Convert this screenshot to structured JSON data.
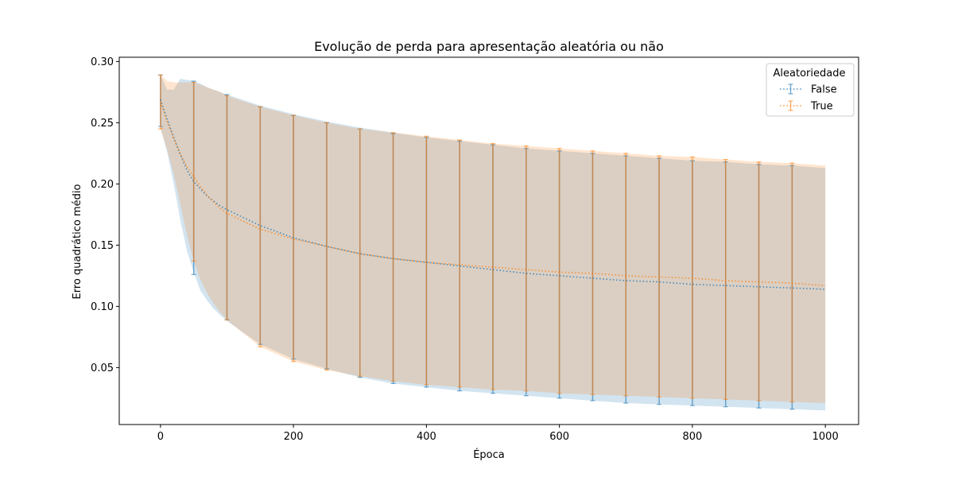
{
  "chart_data": {
    "type": "line",
    "title": "Evolução de perda para apresentação aleatória ou não",
    "xlabel": "Época",
    "ylabel": "Erro quadrático médio",
    "xlim": [
      -62,
      1050
    ],
    "ylim": [
      0.0035,
      0.3035
    ],
    "xticks": [
      0,
      200,
      400,
      600,
      800,
      1000
    ],
    "yticks": [
      0.05,
      0.1,
      0.15,
      0.2,
      0.25,
      0.3
    ],
    "ytick_labels": [
      "0.05",
      "0.10",
      "0.15",
      "0.20",
      "0.25",
      "0.30"
    ],
    "grid": false,
    "legend": {
      "title": "Aleatoriedade",
      "position": "top-right"
    },
    "series": [
      {
        "name": "False",
        "color": "#1f77b4",
        "x": [
          0,
          10,
          20,
          30,
          40,
          50,
          60,
          70,
          80,
          90,
          100,
          150,
          200,
          250,
          300,
          350,
          400,
          450,
          500,
          550,
          600,
          650,
          700,
          750,
          800,
          850,
          900,
          950,
          1000
        ],
        "mean": [
          0.269,
          0.253,
          0.238,
          0.224,
          0.211,
          0.202,
          0.196,
          0.19,
          0.186,
          0.182,
          0.179,
          0.166,
          0.156,
          0.149,
          0.143,
          0.139,
          0.136,
          0.133,
          0.13,
          0.127,
          0.125,
          0.123,
          0.121,
          0.12,
          0.118,
          0.117,
          0.116,
          0.115,
          0.114
        ],
        "upper": [
          0.289,
          0.277,
          0.277,
          0.286,
          0.285,
          0.284,
          0.282,
          0.279,
          0.277,
          0.275,
          0.273,
          0.264,
          0.257,
          0.251,
          0.246,
          0.242,
          0.238,
          0.235,
          0.232,
          0.229,
          0.227,
          0.225,
          0.223,
          0.221,
          0.219,
          0.218,
          0.216,
          0.215,
          0.213
        ],
        "lower": [
          0.246,
          0.226,
          0.2,
          0.17,
          0.145,
          0.128,
          0.113,
          0.105,
          0.098,
          0.093,
          0.088,
          0.069,
          0.057,
          0.049,
          0.042,
          0.037,
          0.034,
          0.031,
          0.029,
          0.027,
          0.025,
          0.023,
          0.021,
          0.02,
          0.019,
          0.018,
          0.017,
          0.016,
          0.015
        ],
        "errorbar_x": [
          0,
          50,
          100,
          150,
          200,
          250,
          300,
          350,
          400,
          450,
          500,
          550,
          600,
          650,
          700,
          750,
          800,
          850,
          900,
          950
        ],
        "errorbar_upper": [
          0.289,
          0.284,
          0.273,
          0.263,
          0.256,
          0.25,
          0.245,
          0.241,
          0.238,
          0.235,
          0.232,
          0.229,
          0.227,
          0.225,
          0.223,
          0.221,
          0.219,
          0.218,
          0.216,
          0.215
        ],
        "errorbar_lower": [
          0.247,
          0.126,
          0.089,
          0.069,
          0.057,
          0.049,
          0.042,
          0.037,
          0.034,
          0.031,
          0.029,
          0.027,
          0.025,
          0.023,
          0.021,
          0.02,
          0.019,
          0.018,
          0.017,
          0.016
        ]
      },
      {
        "name": "True",
        "color": "#ff7f0e",
        "x": [
          0,
          10,
          20,
          30,
          40,
          50,
          60,
          70,
          80,
          90,
          100,
          150,
          200,
          250,
          300,
          350,
          400,
          450,
          500,
          550,
          600,
          650,
          700,
          750,
          800,
          850,
          900,
          950,
          1000
        ],
        "mean": [
          0.267,
          0.251,
          0.237,
          0.224,
          0.214,
          0.206,
          0.198,
          0.191,
          0.185,
          0.18,
          0.176,
          0.163,
          0.155,
          0.149,
          0.143,
          0.139,
          0.136,
          0.134,
          0.132,
          0.13,
          0.128,
          0.127,
          0.125,
          0.124,
          0.123,
          0.121,
          0.12,
          0.119,
          0.117
        ],
        "upper": [
          0.289,
          0.284,
          0.283,
          0.283,
          0.283,
          0.283,
          0.281,
          0.279,
          0.277,
          0.275,
          0.272,
          0.263,
          0.256,
          0.25,
          0.245,
          0.242,
          0.239,
          0.236,
          0.233,
          0.231,
          0.229,
          0.227,
          0.225,
          0.223,
          0.222,
          0.22,
          0.218,
          0.217,
          0.215
        ],
        "lower": [
          0.245,
          0.228,
          0.208,
          0.183,
          0.158,
          0.137,
          0.122,
          0.111,
          0.102,
          0.095,
          0.089,
          0.067,
          0.055,
          0.048,
          0.043,
          0.039,
          0.036,
          0.034,
          0.032,
          0.031,
          0.029,
          0.028,
          0.027,
          0.026,
          0.025,
          0.024,
          0.023,
          0.022,
          0.021
        ],
        "errorbar_x": [
          0,
          50,
          100,
          150,
          200,
          250,
          300,
          350,
          400,
          450,
          500,
          550,
          600,
          650,
          700,
          750,
          800,
          850,
          900,
          950
        ],
        "errorbar_upper": [
          0.289,
          0.283,
          0.272,
          0.263,
          0.256,
          0.25,
          0.245,
          0.242,
          0.239,
          0.236,
          0.233,
          0.231,
          0.229,
          0.227,
          0.225,
          0.223,
          0.222,
          0.22,
          0.218,
          0.217
        ],
        "errorbar_lower": [
          0.245,
          0.137,
          0.089,
          0.067,
          0.055,
          0.048,
          0.043,
          0.039,
          0.036,
          0.034,
          0.032,
          0.031,
          0.029,
          0.028,
          0.027,
          0.026,
          0.025,
          0.024,
          0.023,
          0.022
        ]
      }
    ]
  }
}
